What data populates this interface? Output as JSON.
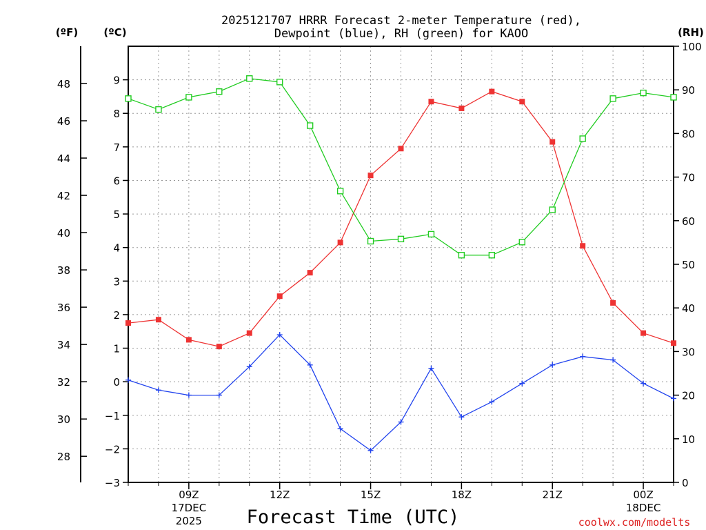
{
  "chart_data": {
    "type": "line",
    "title_line1": "2025121707 HRRR Forecast 2-meter Temperature (red),",
    "title_line2": "Dewpoint (blue), RH (green) for KAOO",
    "unit_f_label": "(ºF)",
    "unit_c_label": "(ºC)",
    "unit_rh_label": "(RH)",
    "xlabel": "Forecast Time (UTC)",
    "credit": "coolwx.com/modelts",
    "x_hours": [
      7,
      8,
      9,
      10,
      11,
      12,
      13,
      14,
      15,
      16,
      17,
      18,
      19,
      20,
      21,
      22,
      23,
      24,
      25
    ],
    "xlim": [
      7,
      25
    ],
    "x_ticks": [
      {
        "hour": 9,
        "label": "09Z",
        "date": "17DEC",
        "year": "2025"
      },
      {
        "hour": 12,
        "label": "12Z",
        "date": "",
        "year": ""
      },
      {
        "hour": 15,
        "label": "15Z",
        "date": "",
        "year": ""
      },
      {
        "hour": 18,
        "label": "18Z",
        "date": "",
        "year": ""
      },
      {
        "hour": 21,
        "label": "21Z",
        "date": "",
        "year": ""
      },
      {
        "hour": 24,
        "label": "00Z",
        "date": "18DEC",
        "year": ""
      }
    ],
    "c_ylim": [
      -3,
      10
    ],
    "c_ticks": [
      9,
      8,
      7,
      6,
      5,
      4,
      3,
      2,
      1,
      0,
      -1,
      -2,
      -3
    ],
    "f_ticks": [
      48,
      46,
      44,
      42,
      40,
      38,
      36,
      34,
      32,
      30,
      28
    ],
    "rh_ylim": [
      0,
      100
    ],
    "rh_ticks": [
      100,
      90,
      80,
      70,
      60,
      50,
      40,
      30,
      20,
      10,
      0
    ],
    "series": [
      {
        "name": "Temperature",
        "axis": "C",
        "color": "#ee3333",
        "marker": "filled-square",
        "values": [
          1.75,
          1.85,
          1.25,
          1.05,
          1.45,
          2.55,
          3.25,
          4.15,
          6.15,
          6.95,
          8.35,
          8.15,
          8.65,
          8.35,
          7.15,
          4.05,
          2.35,
          1.45,
          1.15
        ]
      },
      {
        "name": "Dewpoint",
        "axis": "C",
        "color": "#2244ee",
        "marker": "plus",
        "values": [
          0.05,
          -0.25,
          -0.4,
          -0.4,
          0.45,
          1.4,
          0.5,
          -1.4,
          -2.05,
          -1.2,
          0.4,
          -1.05,
          -0.6,
          -0.05,
          0.5,
          0.75,
          0.65,
          -0.05,
          -0.5
        ]
      },
      {
        "name": "RH",
        "axis": "RH",
        "color": "#22cc22",
        "marker": "open-square",
        "values": [
          88,
          85.5,
          88.3,
          89.6,
          92.6,
          91.8,
          81.8,
          66.8,
          55.3,
          55.8,
          56.9,
          52.1,
          52.1,
          55.1,
          62.5,
          78.8,
          88,
          89.3,
          88.3
        ]
      }
    ]
  }
}
